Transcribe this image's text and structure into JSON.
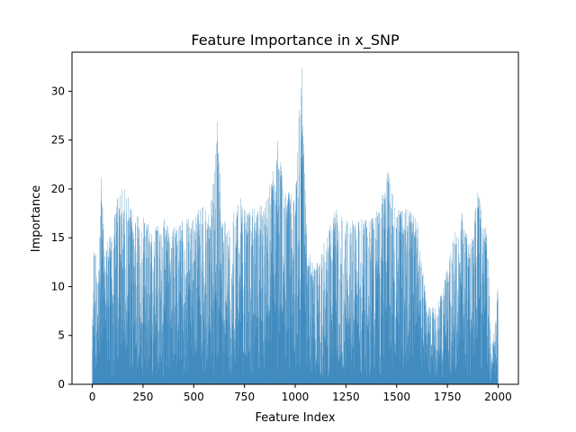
{
  "chart_data": {
    "type": "bar",
    "title": "Feature Importance in x_SNP",
    "xlabel": "Feature Index",
    "ylabel": "Importance",
    "xlim": [
      -100,
      2100
    ],
    "ylim": [
      0,
      34
    ],
    "xticks": [
      0,
      250,
      500,
      750,
      1000,
      1250,
      1500,
      1750,
      2000
    ],
    "yticks": [
      0,
      5,
      10,
      15,
      20,
      25,
      30
    ],
    "grid": false,
    "bar_color": "#1f77b4",
    "profile_description": "Envelope keypoints [feature_index, max_importance] used to generate the dense per-feature bar heights",
    "envelope": [
      [
        0,
        7
      ],
      [
        8,
        14
      ],
      [
        15,
        15
      ],
      [
        30,
        12
      ],
      [
        45,
        21
      ],
      [
        60,
        14
      ],
      [
        100,
        16
      ],
      [
        130,
        20
      ],
      [
        170,
        20
      ],
      [
        200,
        18
      ],
      [
        260,
        17
      ],
      [
        300,
        16
      ],
      [
        340,
        18
      ],
      [
        380,
        16
      ],
      [
        440,
        17
      ],
      [
        500,
        17
      ],
      [
        545,
        19
      ],
      [
        580,
        17
      ],
      [
        615,
        27
      ],
      [
        640,
        17
      ],
      [
        680,
        16
      ],
      [
        720,
        20
      ],
      [
        760,
        18
      ],
      [
        800,
        18
      ],
      [
        860,
        19
      ],
      [
        915,
        25
      ],
      [
        950,
        20
      ],
      [
        1000,
        20
      ],
      [
        1030,
        33
      ],
      [
        1060,
        14
      ],
      [
        1100,
        12
      ],
      [
        1200,
        18
      ],
      [
        1260,
        17
      ],
      [
        1300,
        17
      ],
      [
        1380,
        17
      ],
      [
        1460,
        22
      ],
      [
        1500,
        18
      ],
      [
        1560,
        18
      ],
      [
        1600,
        17
      ],
      [
        1650,
        8
      ],
      [
        1700,
        8
      ],
      [
        1750,
        12
      ],
      [
        1780,
        15
      ],
      [
        1820,
        18
      ],
      [
        1860,
        14
      ],
      [
        1900,
        20
      ],
      [
        1950,
        15
      ],
      [
        1965,
        4
      ],
      [
        1990,
        7
      ],
      [
        2000,
        11
      ]
    ],
    "notable_peaks": [
      {
        "x": 45,
        "y": 21.2
      },
      {
        "x": 615,
        "y": 26.9
      },
      {
        "x": 915,
        "y": 24.9
      },
      {
        "x": 1032,
        "y": 32.4
      },
      {
        "x": 1460,
        "y": 21.7
      },
      {
        "x": 1900,
        "y": 19.6
      }
    ]
  }
}
